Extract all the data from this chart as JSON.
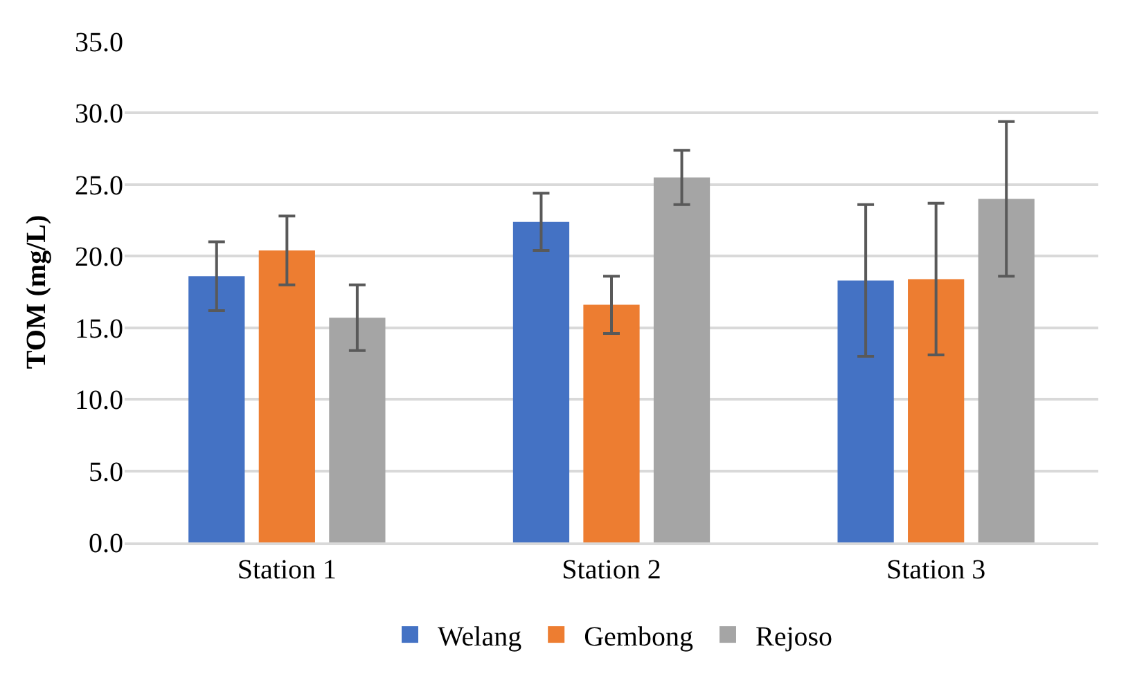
{
  "chart_data": {
    "type": "bar",
    "ylabel": "TOM (mg/L)",
    "categories": [
      "Station 1",
      "Station 2",
      "Station 3"
    ],
    "series": [
      {
        "name": "Welang",
        "color": "#4472c4",
        "values": [
          18.6,
          22.4,
          18.3
        ],
        "errors": [
          2.4,
          2.0,
          5.3
        ]
      },
      {
        "name": "Gembong",
        "color": "#ed7d31",
        "values": [
          20.4,
          16.6,
          18.4
        ],
        "errors": [
          2.4,
          2.0,
          5.3
        ]
      },
      {
        "name": "Rejoso",
        "color": "#a5a5a5",
        "values": [
          15.7,
          25.5,
          24.0
        ],
        "errors": [
          2.3,
          1.9,
          5.4
        ]
      }
    ],
    "ylim": [
      0,
      35
    ],
    "yticks": [
      {
        "value": 0,
        "label": "0.0"
      },
      {
        "value": 5,
        "label": "5.0"
      },
      {
        "value": 10,
        "label": "10.0"
      },
      {
        "value": 15,
        "label": "15.0"
      },
      {
        "value": 20,
        "label": "20.0"
      },
      {
        "value": 25,
        "label": "25.0"
      },
      {
        "value": 30,
        "label": "30.0"
      },
      {
        "value": 35,
        "label": "35.0"
      }
    ],
    "grid": "y",
    "legend": "bottom"
  }
}
